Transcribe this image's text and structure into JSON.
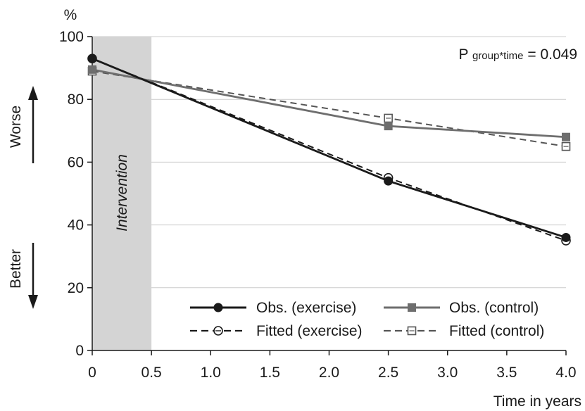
{
  "chart_data": {
    "type": "line",
    "title": "",
    "ylabel": "%",
    "xlabel": "Time in years",
    "xlim": [
      0,
      4.0
    ],
    "ylim": [
      0,
      100
    ],
    "x_ticks": [
      "0",
      "0.5",
      "1.0",
      "1.5",
      "2.0",
      "2.5",
      "3.0",
      "3.5",
      "4.0"
    ],
    "y_ticks": [
      "0",
      "20",
      "40",
      "60",
      "80",
      "100"
    ],
    "grid": "horizontal",
    "shaded_region": {
      "x_start": 0,
      "x_end": 0.5,
      "label": "Intervention",
      "color": "#d4d4d4"
    },
    "annotation": {
      "text_main": "P ",
      "text_sub": "group*time",
      "text_tail": " = 0.049"
    },
    "direction_labels": {
      "up": "Worse",
      "down": "Better"
    },
    "legend_position": "bottom-right",
    "series": [
      {
        "name": "Obs. (exercise)",
        "color": "#1a1a1a",
        "style": "solid",
        "marker": "filled-circle",
        "x": [
          0,
          2.5,
          4.0
        ],
        "values": [
          93,
          54,
          36
        ]
      },
      {
        "name": "Obs. (control)",
        "color": "#6e6e6e",
        "style": "solid",
        "marker": "filled-square",
        "x": [
          0,
          2.5,
          4.0
        ],
        "values": [
          89.5,
          71.5,
          68
        ]
      },
      {
        "name": "Fitted (exercise)",
        "color": "#1a1a1a",
        "style": "dashed",
        "marker": "open-circle",
        "x": [
          0,
          2.5,
          4.0
        ],
        "values": [
          93,
          55,
          35
        ]
      },
      {
        "name": "Fitted (control)",
        "color": "#555555",
        "style": "dashed",
        "marker": "open-square",
        "x": [
          0,
          2.5,
          4.0
        ],
        "values": [
          89,
          74,
          65
        ]
      }
    ]
  }
}
